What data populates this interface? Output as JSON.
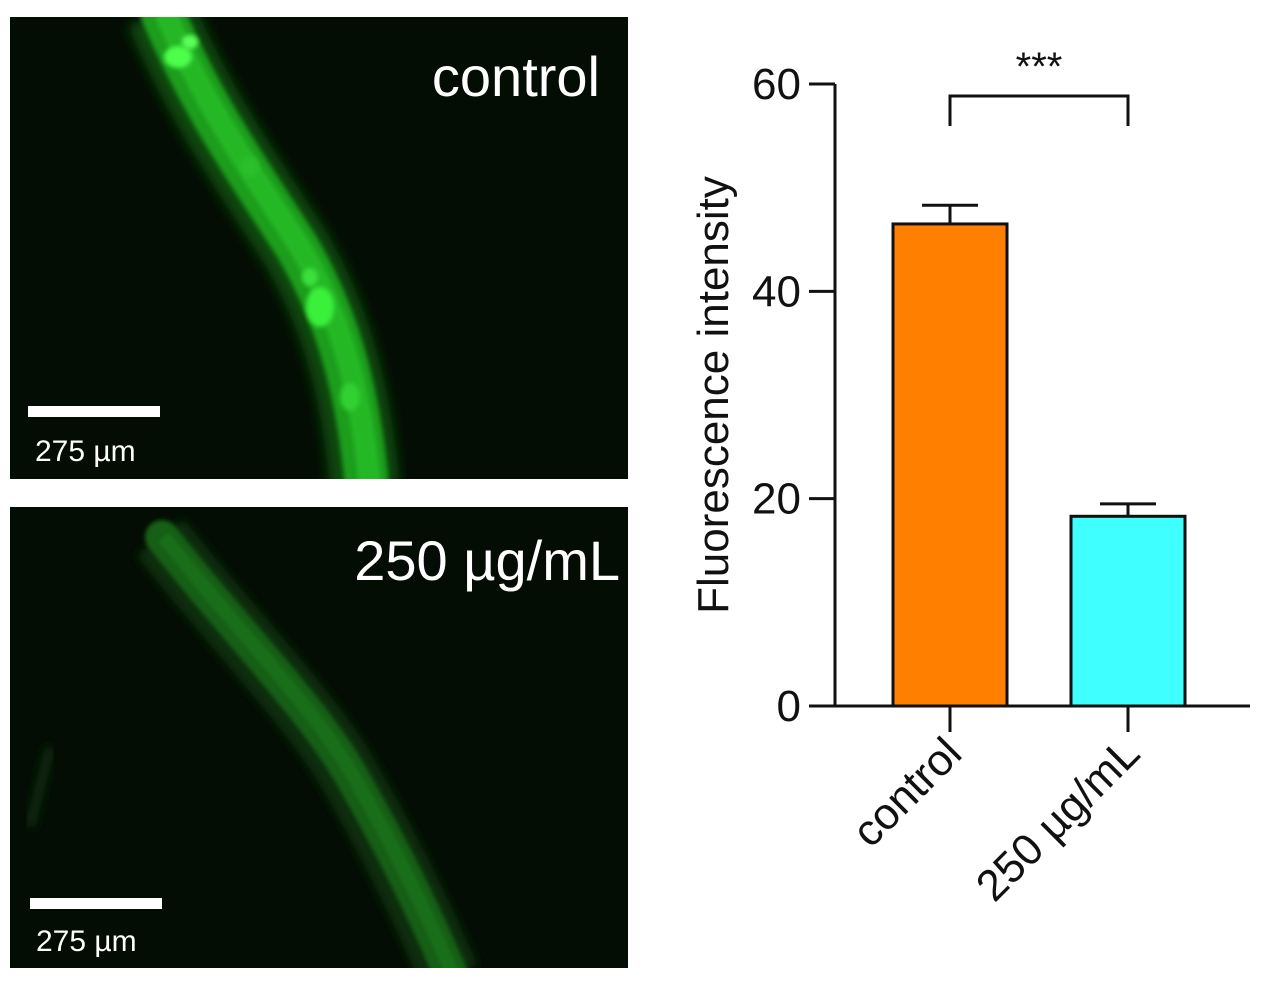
{
  "panels": [
    {
      "label": "control",
      "scale_bar": "275 µm",
      "fluorescence": "bright"
    },
    {
      "label": "250 µg/mL",
      "scale_bar": "275 µm",
      "fluorescence": "dim"
    }
  ],
  "chart_data": {
    "type": "bar",
    "categories": [
      "control",
      "250 µg/mL"
    ],
    "values": [
      46.5,
      18.3
    ],
    "errors": [
      1.8,
      1.2
    ],
    "colors": [
      "#ff8000",
      "#40ffff"
    ],
    "xlabel": "",
    "ylabel": "Fluorescence intensity",
    "ylim": [
      0,
      60
    ],
    "yticks": [
      0,
      20,
      40,
      60
    ],
    "significance": {
      "between": [
        0,
        1
      ],
      "label": "***"
    },
    "grid": false
  }
}
